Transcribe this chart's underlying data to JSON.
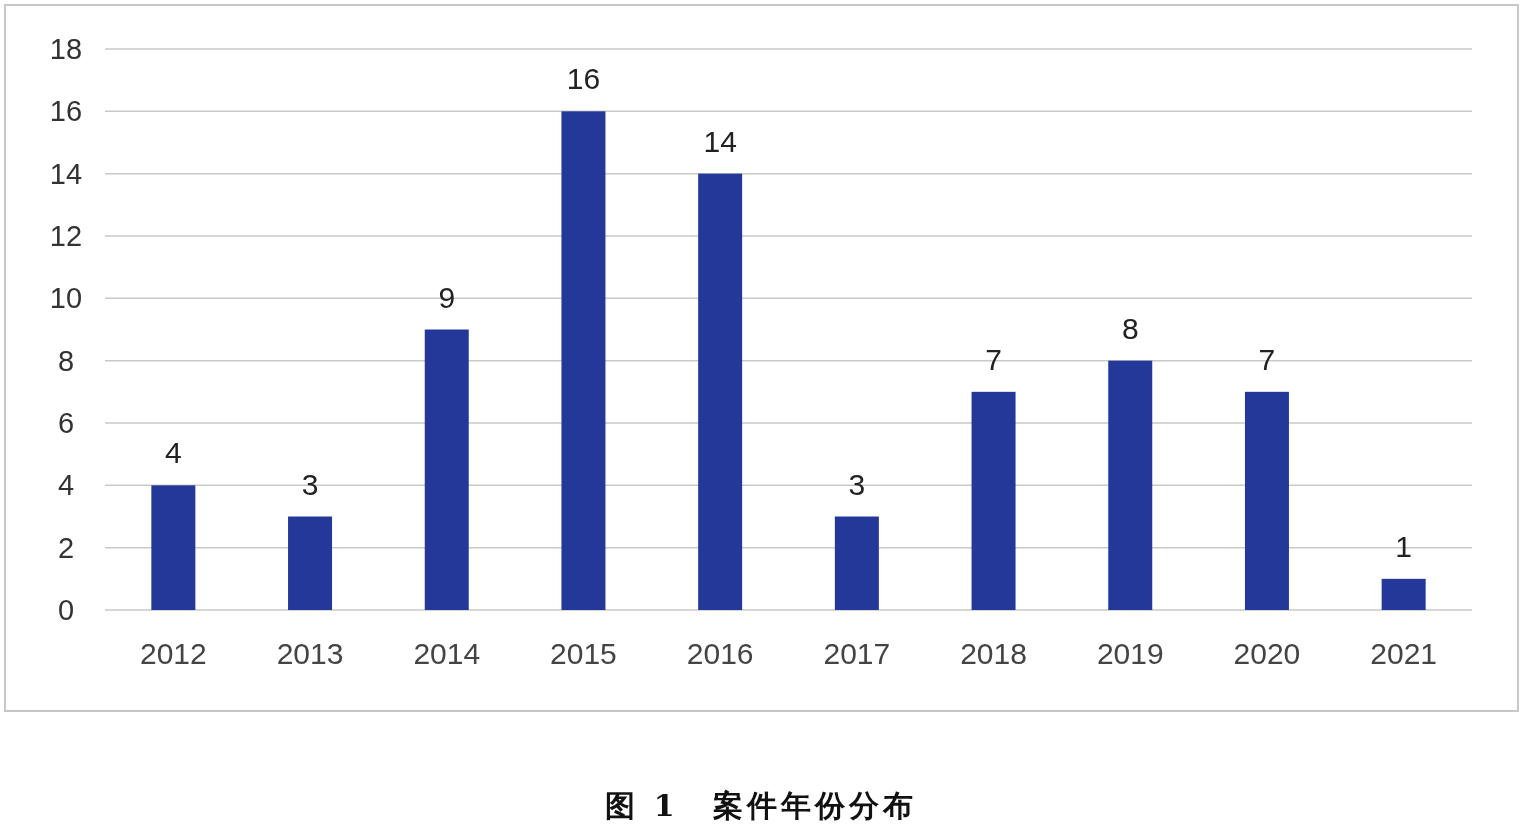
{
  "chart_data": {
    "type": "bar",
    "title": "图 1　案件年份分布",
    "categories": [
      "2012",
      "2013",
      "2014",
      "2015",
      "2016",
      "2017",
      "2018",
      "2019",
      "2020",
      "2021"
    ],
    "values": [
      4,
      3,
      9,
      16,
      14,
      3,
      7,
      8,
      7,
      1
    ],
    "color": "#24389a",
    "ylim": [
      0,
      18
    ],
    "yticks": [
      0,
      2,
      4,
      6,
      8,
      10,
      12,
      14,
      16,
      18
    ],
    "grid": "y",
    "data_labels": true
  }
}
